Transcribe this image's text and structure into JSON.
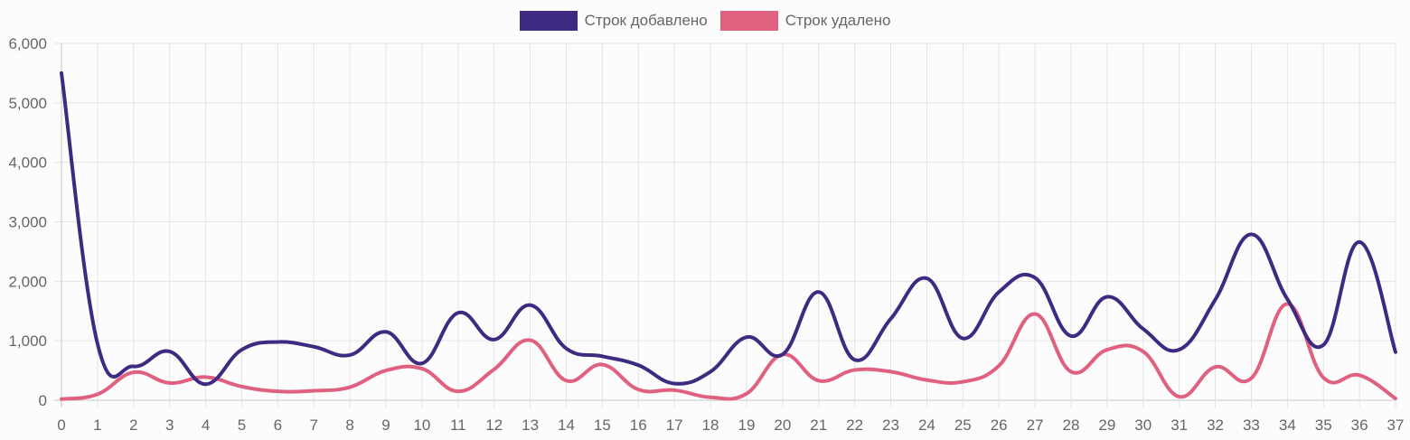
{
  "chart_data": {
    "type": "line",
    "title": "",
    "xlabel": "",
    "ylabel": "",
    "ylim": [
      0,
      6000
    ],
    "yticks": [
      "0",
      "1,000",
      "2,000",
      "3,000",
      "4,000",
      "5,000",
      "6,000"
    ],
    "grid": true,
    "legend_position": "top",
    "categories": [
      0,
      1,
      2,
      3,
      4,
      5,
      6,
      7,
      8,
      9,
      10,
      11,
      12,
      13,
      14,
      15,
      16,
      17,
      18,
      19,
      20,
      21,
      22,
      23,
      24,
      25,
      26,
      27,
      28,
      29,
      30,
      31,
      32,
      33,
      34,
      35,
      36,
      37
    ],
    "series": [
      {
        "name": "Строк добавлено",
        "color": "#3e2a80",
        "values": [
          5500,
          950,
          570,
          820,
          270,
          850,
          980,
          900,
          760,
          1150,
          620,
          1470,
          1020,
          1600,
          870,
          740,
          590,
          280,
          480,
          1060,
          770,
          1820,
          680,
          1370,
          2050,
          1040,
          1820,
          2060,
          1080,
          1740,
          1200,
          850,
          1690,
          2790,
          1700,
          930,
          2660,
          810
        ]
      },
      {
        "name": "Строк удалено",
        "color": "#e06080",
        "values": [
          20,
          100,
          470,
          290,
          390,
          230,
          150,
          160,
          220,
          500,
          530,
          150,
          520,
          1010,
          330,
          600,
          180,
          170,
          50,
          110,
          770,
          330,
          510,
          480,
          340,
          310,
          580,
          1450,
          480,
          850,
          820,
          60,
          560,
          370,
          1620,
          380,
          420,
          30
        ]
      }
    ]
  },
  "legend": {
    "items": [
      {
        "label": "Строк добавлено",
        "color": "#3e2a80"
      },
      {
        "label": "Строк удалено",
        "color": "#e06080"
      }
    ]
  }
}
